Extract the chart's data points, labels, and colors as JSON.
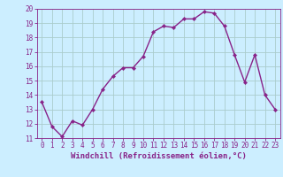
{
  "x": [
    0,
    1,
    2,
    3,
    4,
    5,
    6,
    7,
    8,
    9,
    10,
    11,
    12,
    13,
    14,
    15,
    16,
    17,
    18,
    19,
    20,
    21,
    22,
    23
  ],
  "y": [
    13.5,
    11.8,
    11.1,
    12.2,
    11.9,
    13.0,
    14.4,
    15.3,
    15.9,
    15.9,
    16.7,
    18.4,
    18.8,
    18.7,
    19.3,
    19.3,
    19.8,
    19.7,
    18.8,
    16.8,
    14.9,
    16.8,
    14.0,
    13.0
  ],
  "line_color": "#882288",
  "marker": "D",
  "markersize": 2.2,
  "linewidth": 1.0,
  "bg_color": "#cceeff",
  "grid_color": "#aacccc",
  "xlabel": "Windchill (Refroidissement éolien,°C)",
  "xlim": [
    -0.5,
    23.5
  ],
  "ylim": [
    11,
    20
  ],
  "xticks": [
    0,
    1,
    2,
    3,
    4,
    5,
    6,
    7,
    8,
    9,
    10,
    11,
    12,
    13,
    14,
    15,
    16,
    17,
    18,
    19,
    20,
    21,
    22,
    23
  ],
  "yticks": [
    11,
    12,
    13,
    14,
    15,
    16,
    17,
    18,
    19,
    20
  ],
  "tick_color": "#882288",
  "label_color": "#882288",
  "xlabel_fontsize": 6.5,
  "tick_fontsize": 5.5
}
